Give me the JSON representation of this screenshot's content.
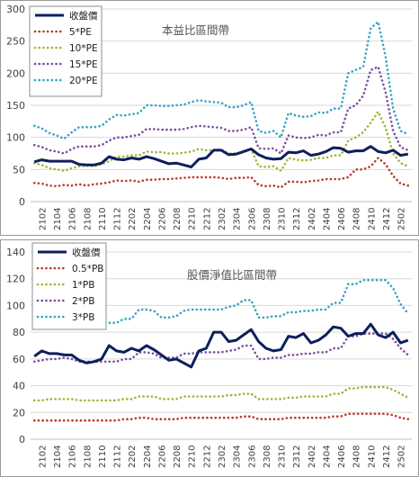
{
  "chart_data": [
    {
      "type": "line",
      "title": "本益比區間帶",
      "categories": [
        "2101",
        "2102",
        "2103",
        "2104",
        "2105",
        "2106",
        "2107",
        "2108",
        "2109",
        "2110",
        "2111",
        "2112",
        "2201",
        "2202",
        "2203",
        "2204",
        "2205",
        "2206",
        "2207",
        "2208",
        "2209",
        "2210",
        "2211",
        "2212",
        "2301",
        "2302",
        "2303",
        "2304",
        "2305",
        "2306",
        "2307",
        "2308",
        "2309",
        "2310",
        "2311",
        "2312",
        "2401",
        "2402",
        "2403",
        "2404",
        "2405",
        "2406",
        "2407",
        "2408",
        "2409",
        "2410",
        "2411",
        "2412",
        "2501",
        "2502",
        "2503"
      ],
      "x_tick_labels": [
        "2102",
        "2104",
        "2106",
        "2108",
        "2110",
        "2112",
        "2202",
        "2204",
        "2206",
        "2208",
        "2210",
        "2212",
        "2302",
        "2304",
        "2306",
        "2308",
        "2310",
        "2312",
        "2402",
        "2404",
        "2406",
        "2408",
        "2410",
        "2412",
        "2502"
      ],
      "y_tick_labels": [
        "0",
        "50",
        "100",
        "150",
        "200",
        "250",
        "300"
      ],
      "ylim": [
        0,
        300
      ],
      "legend_position": "top-left",
      "series": [
        {
          "name": "收盤價",
          "style": "solid",
          "color": "#0d1f5c",
          "values": [
            62,
            65,
            63,
            63,
            63,
            63,
            58,
            57,
            57,
            60,
            70,
            66,
            65,
            68,
            66,
            70,
            67,
            63,
            59,
            60,
            57,
            54,
            66,
            68,
            80,
            80,
            73,
            74,
            78,
            82,
            73,
            68,
            66,
            67,
            77,
            76,
            79,
            72,
            74,
            78,
            84,
            83,
            77,
            79,
            79,
            86,
            78,
            76,
            80,
            72,
            74
          ]
        },
        {
          "name": "5*PE",
          "style": "dotted",
          "color": "#c0392b",
          "values": [
            29,
            28,
            25,
            24,
            26,
            25,
            27,
            25,
            27,
            28,
            30,
            33,
            32,
            33,
            31,
            34,
            34,
            35,
            35,
            36,
            37,
            38,
            38,
            38,
            38,
            37,
            35,
            37,
            37,
            38,
            26,
            24,
            25,
            22,
            31,
            31,
            30,
            32,
            33,
            35,
            35,
            35,
            38,
            50,
            50,
            55,
            68,
            58,
            40,
            28,
            25
          ]
        },
        {
          "name": "10*PE",
          "style": "dotted",
          "color": "#9ab83b",
          "values": [
            60,
            57,
            52,
            50,
            48,
            52,
            55,
            56,
            55,
            58,
            63,
            70,
            70,
            72,
            72,
            78,
            77,
            77,
            75,
            75,
            76,
            78,
            82,
            80,
            80,
            81,
            75,
            75,
            78,
            82,
            55,
            54,
            55,
            48,
            68,
            65,
            64,
            65,
            68,
            68,
            72,
            72,
            95,
            100,
            108,
            123,
            140,
            115,
            75,
            60,
            55
          ]
        },
        {
          "name": "15*PE",
          "style": "dotted",
          "color": "#7b4fa1",
          "values": [
            88,
            85,
            80,
            78,
            75,
            82,
            86,
            86,
            86,
            88,
            95,
            100,
            100,
            102,
            104,
            113,
            113,
            112,
            112,
            112,
            113,
            116,
            118,
            117,
            116,
            115,
            110,
            110,
            112,
            116,
            83,
            82,
            83,
            75,
            103,
            100,
            99,
            100,
            104,
            103,
            108,
            108,
            145,
            150,
            165,
            205,
            210,
            170,
            110,
            85,
            80
          ]
        },
        {
          "name": "20*PE",
          "style": "dotted",
          "color": "#35a3c5",
          "values": [
            118,
            114,
            107,
            103,
            98,
            108,
            116,
            116,
            116,
            118,
            128,
            135,
            134,
            136,
            138,
            150,
            150,
            149,
            149,
            150,
            151,
            155,
            158,
            156,
            155,
            154,
            147,
            147,
            150,
            155,
            110,
            107,
            110,
            100,
            138,
            134,
            132,
            133,
            139,
            138,
            145,
            145,
            200,
            205,
            210,
            270,
            280,
            225,
            145,
            110,
            105
          ]
        }
      ]
    },
    {
      "type": "line",
      "title": "股價淨值比區間帶",
      "categories": [
        "2101",
        "2102",
        "2103",
        "2104",
        "2105",
        "2106",
        "2107",
        "2108",
        "2109",
        "2110",
        "2111",
        "2112",
        "2201",
        "2202",
        "2203",
        "2204",
        "2205",
        "2206",
        "2207",
        "2208",
        "2209",
        "2210",
        "2211",
        "2212",
        "2301",
        "2302",
        "2303",
        "2304",
        "2305",
        "2306",
        "2307",
        "2308",
        "2309",
        "2310",
        "2311",
        "2312",
        "2401",
        "2402",
        "2403",
        "2404",
        "2405",
        "2406",
        "2407",
        "2408",
        "2409",
        "2410",
        "2411",
        "2412",
        "2501",
        "2502",
        "2503"
      ],
      "x_tick_labels": [
        "2102",
        "2104",
        "2106",
        "2108",
        "2110",
        "2112",
        "2202",
        "2204",
        "2206",
        "2208",
        "2210",
        "2212",
        "2302",
        "2304",
        "2306",
        "2308",
        "2310",
        "2312",
        "2402",
        "2404",
        "2406",
        "2408",
        "2410",
        "2412",
        "2502"
      ],
      "y_tick_labels": [
        "0",
        "20",
        "40",
        "60",
        "80",
        "100",
        "120",
        "140"
      ],
      "ylim": [
        0,
        140
      ],
      "legend_position": "top-left",
      "series": [
        {
          "name": "收盤價",
          "style": "solid",
          "color": "#0d1f5c",
          "values": [
            62,
            66,
            64,
            64,
            63,
            63,
            59,
            57,
            58,
            60,
            70,
            66,
            65,
            68,
            66,
            70,
            67,
            63,
            59,
            60,
            57,
            54,
            66,
            68,
            80,
            80,
            73,
            74,
            78,
            82,
            73,
            68,
            66,
            67,
            77,
            76,
            79,
            72,
            74,
            78,
            84,
            83,
            77,
            79,
            79,
            86,
            78,
            76,
            80,
            72,
            74
          ]
        },
        {
          "name": "0.5*PB",
          "style": "dotted",
          "color": "#c0392b",
          "values": [
            14,
            14,
            14,
            14,
            14,
            14,
            14,
            14,
            14,
            14,
            14,
            14,
            15,
            15,
            16,
            16,
            15,
            15,
            15,
            15,
            16,
            16,
            16,
            16,
            16,
            16,
            16,
            16,
            17,
            17,
            15,
            15,
            15,
            15,
            16,
            16,
            16,
            16,
            16,
            16,
            17,
            17,
            19,
            19,
            19,
            19,
            19,
            19,
            18,
            16,
            15
          ]
        },
        {
          "name": "1*PB",
          "style": "dotted",
          "color": "#9ab83b",
          "values": [
            29,
            29,
            30,
            30,
            30,
            30,
            29,
            29,
            29,
            29,
            29,
            29,
            30,
            30,
            32,
            32,
            32,
            30,
            30,
            30,
            32,
            32,
            32,
            32,
            32,
            32,
            33,
            33,
            34,
            34,
            30,
            30,
            30,
            30,
            31,
            31,
            32,
            32,
            32,
            32,
            34,
            34,
            38,
            38,
            39,
            39,
            39,
            39,
            37,
            34,
            31
          ]
        },
        {
          "name": "2*PB",
          "style": "dotted",
          "color": "#7b4fa1",
          "values": [
            58,
            59,
            60,
            60,
            61,
            60,
            58,
            58,
            58,
            58,
            58,
            58,
            60,
            60,
            65,
            65,
            64,
            61,
            61,
            61,
            64,
            64,
            65,
            65,
            65,
            65,
            66,
            67,
            70,
            70,
            60,
            60,
            61,
            61,
            63,
            63,
            64,
            64,
            65,
            65,
            68,
            68,
            77,
            77,
            79,
            79,
            79,
            79,
            75,
            68,
            63
          ]
        },
        {
          "name": "3*PB",
          "style": "dotted",
          "color": "#35a3c5",
          "values": [
            88,
            88,
            89,
            89,
            90,
            90,
            88,
            87,
            87,
            87,
            87,
            87,
            90,
            90,
            97,
            97,
            96,
            91,
            91,
            92,
            96,
            97,
            97,
            97,
            97,
            97,
            99,
            100,
            104,
            104,
            91,
            91,
            92,
            92,
            95,
            95,
            96,
            96,
            97,
            97,
            102,
            102,
            116,
            116,
            119,
            119,
            119,
            119,
            113,
            101,
            94
          ]
        }
      ]
    }
  ]
}
